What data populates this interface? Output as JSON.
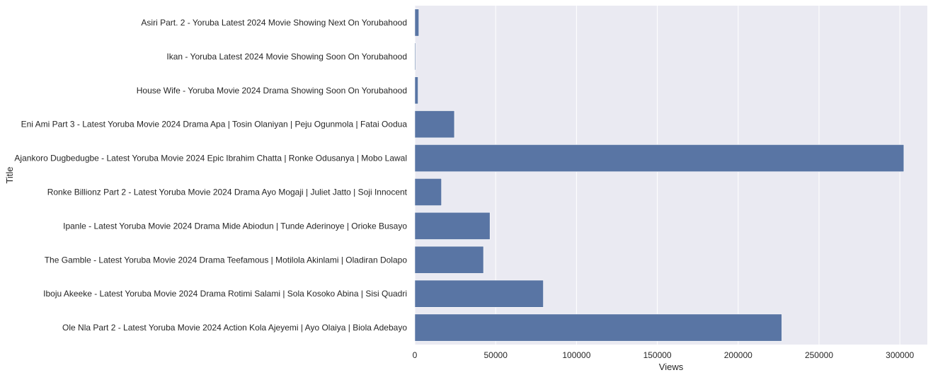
{
  "chart_data": {
    "type": "bar",
    "orientation": "horizontal",
    "title": "",
    "xlabel": "Views",
    "ylabel": "Title",
    "xlim": [
      0,
      317000
    ],
    "xticks": [
      0,
      50000,
      100000,
      150000,
      200000,
      250000,
      300000
    ],
    "grid": true,
    "colors": {
      "bar": "#5975a4",
      "plot_bg": "#eaeaf2",
      "grid": "#ffffff",
      "text": "#262626"
    },
    "categories": [
      "Asiri Part. 2 - Yoruba Latest 2024 Movie Showing Next On Yorubahood",
      "Ikan - Yoruba Latest 2024 Movie Showing Soon On Yorubahood",
      "House Wife - Yoruba Movie 2024 Drama Showing Soon On Yorubahood",
      "Eni Ami Part 3 - Latest Yoruba Movie 2024 Drama Apa | Tosin Olaniyan | Peju Ogunmola | Fatai Oodua",
      "Ajankoro Dugbedugbe - Latest Yoruba Movie 2024 Epic Ibrahim Chatta | Ronke Odusanya | Mobo Lawal",
      "Ronke Billionz Part 2 - Latest Yoruba Movie 2024 Drama Ayo Mogaji | Juliet Jatto | Soji Innocent",
      "Ipanle - Latest Yoruba Movie 2024 Drama Mide Abiodun | Tunde Aderinoye | Orioke Busayo",
      "The Gamble - Latest Yoruba Movie 2024 Drama Teefamous | Motilola Akinlami | Oladiran Dolapo",
      "Iboju Akeeke - Latest Yoruba Movie 2024 Drama Rotimi Salami | Sola Kosoko Abina | Sisi Quadri",
      "Ole Nla Part 2 - Latest Yoruba Movie 2024 Action Kola Ajeyemi | Ayo Olaiya | Biola Adebayo"
    ],
    "values": [
      2500,
      500,
      2000,
      24500,
      302500,
      16500,
      46500,
      42500,
      79500,
      227000
    ]
  }
}
